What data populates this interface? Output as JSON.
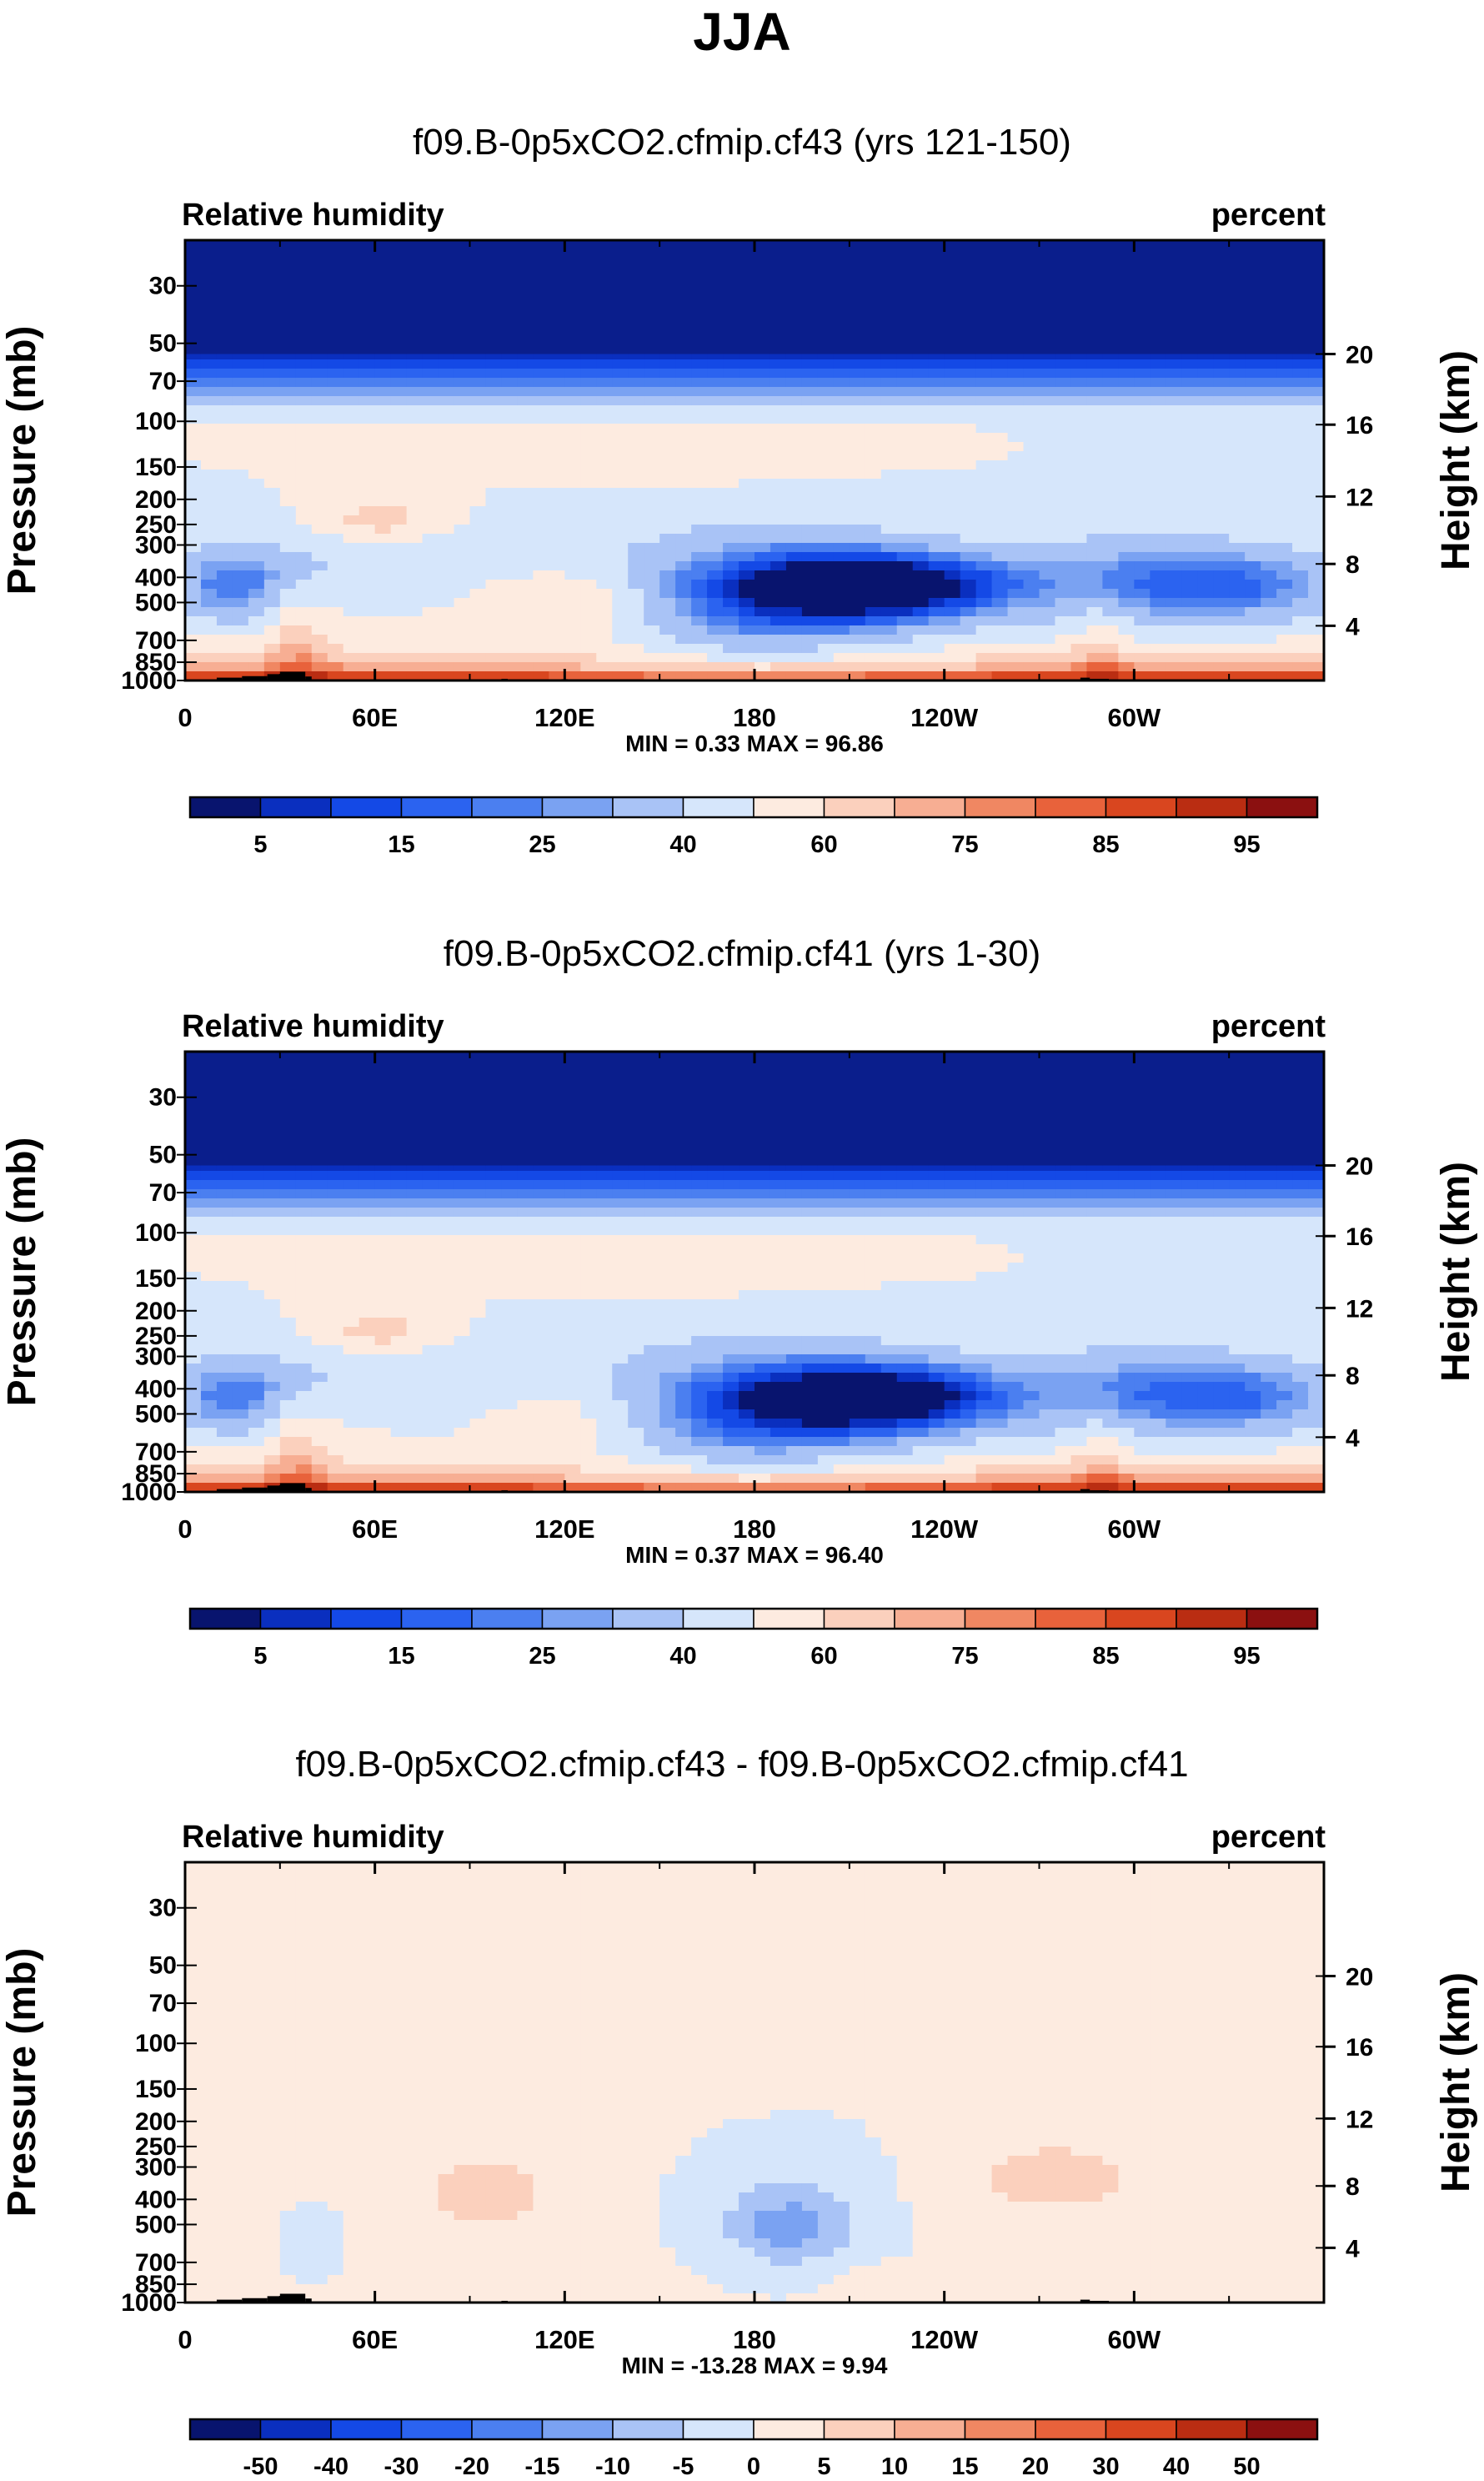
{
  "figure": {
    "title": "JJA",
    "variable_label": "Relative humidity",
    "units_label": "percent",
    "left_axis_title": "Pressure (mb)",
    "right_axis_title": "Height (km)"
  },
  "palette": {
    "seq": [
      "#08146e",
      "#0a2fbf",
      "#1449e6",
      "#2b63f0",
      "#4b7ff0",
      "#7aa2f2",
      "#a9c3f6",
      "#d6e6fb",
      "#fdebe0",
      "#fbd0bd",
      "#f7ae93",
      "#f08762",
      "#e8623b",
      "#d9461f",
      "#ba2d12",
      "#8b1010"
    ],
    "terrain": "#000000",
    "frame": "#000000"
  },
  "chart_data": [
    {
      "type": "heatmap",
      "subtitle": "f09.B-0p5xCO2.cfmip.cf43 (yrs 121-150)",
      "x_ticks": [
        "0",
        "60E",
        "120E",
        "180",
        "120W",
        "60W"
      ],
      "pressure_ticks": [
        "30",
        "50",
        "70",
        "100",
        "150",
        "200",
        "250",
        "300",
        "400",
        "500",
        "700",
        "850",
        "1000"
      ],
      "height_ticks": [
        "20",
        "16",
        "12",
        "8",
        "4"
      ],
      "min_max_text": "MIN =   0.33  MAX =  96.86",
      "min": 0.33,
      "max": 96.86,
      "colorbar_labels": [
        "5",
        "15",
        "25",
        "40",
        "60",
        "75",
        "85",
        "95"
      ],
      "colorbar_levels": [
        5,
        10,
        15,
        20,
        25,
        30,
        40,
        50,
        60,
        70,
        75,
        80,
        85,
        90,
        95
      ],
      "variant": 0
    },
    {
      "type": "heatmap",
      "subtitle": "f09.B-0p5xCO2.cfmip.cf41 (yrs 1-30)",
      "x_ticks": [
        "0",
        "60E",
        "120E",
        "180",
        "120W",
        "60W"
      ],
      "pressure_ticks": [
        "30",
        "50",
        "70",
        "100",
        "150",
        "200",
        "250",
        "300",
        "400",
        "500",
        "700",
        "850",
        "1000"
      ],
      "height_ticks": [
        "20",
        "16",
        "12",
        "8",
        "4"
      ],
      "min_max_text": "MIN =   0.37  MAX =  96.40",
      "min": 0.37,
      "max": 96.4,
      "colorbar_labels": [
        "5",
        "15",
        "25",
        "40",
        "60",
        "75",
        "85",
        "95"
      ],
      "colorbar_levels": [
        5,
        10,
        15,
        20,
        25,
        30,
        40,
        50,
        60,
        70,
        75,
        80,
        85,
        90,
        95
      ],
      "variant": 1
    },
    {
      "type": "heatmap",
      "subtitle": "f09.B-0p5xCO2.cfmip.cf43 - f09.B-0p5xCO2.cfmip.cf41",
      "x_ticks": [
        "0",
        "60E",
        "120E",
        "180",
        "120W",
        "60W"
      ],
      "pressure_ticks": [
        "30",
        "50",
        "70",
        "100",
        "150",
        "200",
        "250",
        "300",
        "400",
        "500",
        "700",
        "850",
        "1000"
      ],
      "height_ticks": [
        "20",
        "16",
        "12",
        "8",
        "4"
      ],
      "min_max_text": "MIN = -13.28  MAX =   9.94",
      "min": -13.28,
      "max": 9.94,
      "colorbar_labels": [
        "-50",
        "-40",
        "-30",
        "-20",
        "-15",
        "-10",
        "-5",
        "0",
        "5",
        "10",
        "15",
        "20",
        "30",
        "40",
        "50"
      ],
      "colorbar_levels": [
        -50,
        -40,
        -30,
        -20,
        -15,
        -10,
        -5,
        0,
        5,
        10,
        15,
        20,
        30,
        40,
        50
      ],
      "variant": 2
    }
  ]
}
